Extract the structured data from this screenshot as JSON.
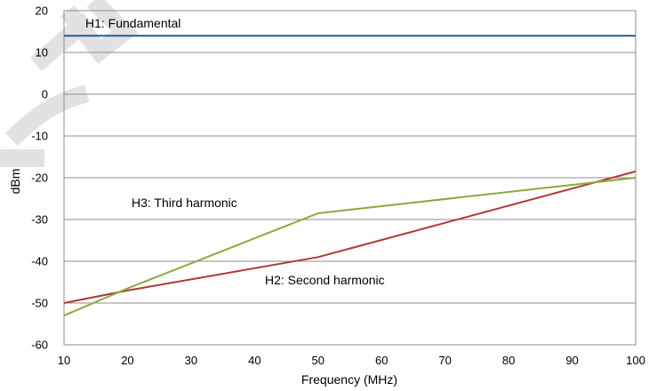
{
  "chart_data": {
    "type": "line",
    "xlabel": "Frequency (MHz)",
    "ylabel": "dBm",
    "xlim": [
      10,
      100
    ],
    "ylim": [
      -60,
      20
    ],
    "x_ticks": [
      10,
      20,
      30,
      40,
      50,
      60,
      70,
      80,
      90,
      100
    ],
    "y_ticks": [
      -60,
      -50,
      -40,
      -30,
      -20,
      -10,
      0,
      10,
      20
    ],
    "grid": "horizontal",
    "legend": "none",
    "series": [
      {
        "name": "H1: Fundamental",
        "color": "#1f5f8b",
        "x": [
          10,
          100
        ],
        "y": [
          14,
          14
        ]
      },
      {
        "name": "H2: Second harmonic",
        "color": "#b03a32",
        "x": [
          10,
          20,
          50,
          100
        ],
        "y": [
          -50,
          -47,
          -39,
          -18.5
        ]
      },
      {
        "name": "H3: Third harmonic",
        "color": "#8aaa3c",
        "x": [
          10,
          20,
          50,
          100
        ],
        "y": [
          -53,
          -46.5,
          -28.5,
          -20
        ]
      }
    ],
    "annotations": [
      "H1: Fundamental",
      "H3: Third harmonic",
      "H2: Second harmonic"
    ]
  }
}
